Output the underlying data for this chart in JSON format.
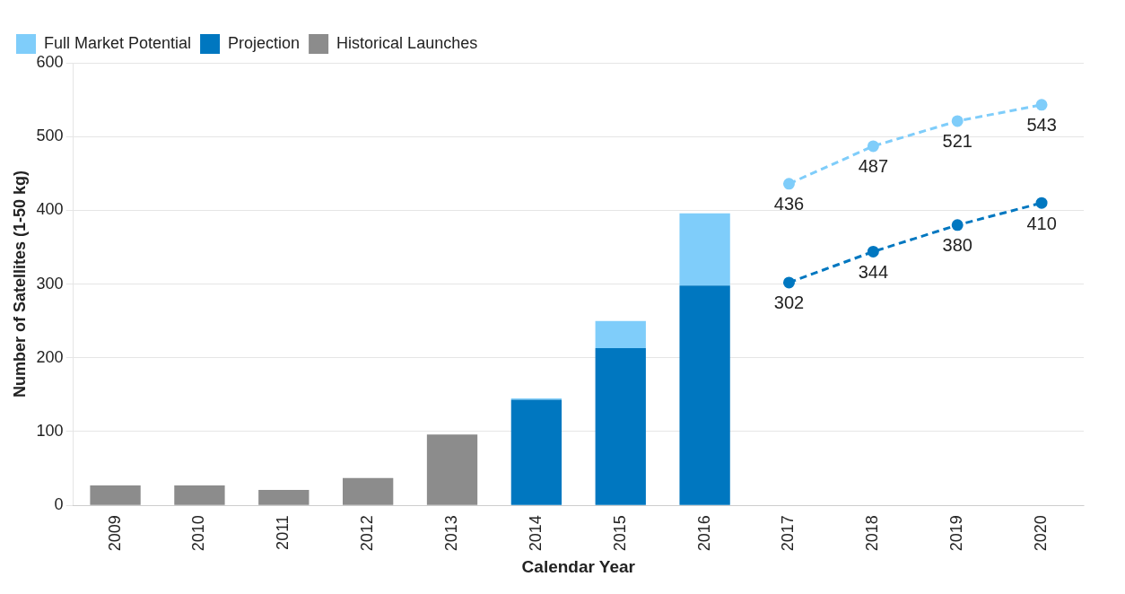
{
  "chart_data": {
    "type": "bar",
    "stacked": true,
    "xlabel": "Calendar Year",
    "ylabel": "Number of Satellites (1-50 kg)",
    "categories": [
      "2009",
      "2010",
      "2011",
      "2012",
      "2013",
      "2014",
      "2015",
      "2016",
      "2017",
      "2018",
      "2019",
      "2020"
    ],
    "series": [
      {
        "name": "Historical Launches",
        "color": "#8c8c8c",
        "values": [
          27,
          27,
          21,
          37,
          96,
          null,
          null,
          null,
          null,
          null,
          null,
          null
        ]
      },
      {
        "name": "Projection",
        "color": "#0077c0",
        "values": [
          null,
          null,
          null,
          null,
          null,
          143,
          213,
          298,
          null,
          null,
          null,
          null
        ]
      },
      {
        "name": "Full Market Potential",
        "color": "#7fcdfa",
        "values": [
          null,
          null,
          null,
          null,
          null,
          2,
          37,
          98,
          null,
          null,
          null,
          null
        ]
      },
      {
        "type": "line",
        "color": "#7fcdfa",
        "marker": "circle",
        "line_style": "dashed",
        "values": [
          null,
          null,
          null,
          null,
          null,
          null,
          null,
          null,
          436,
          487,
          521,
          543
        ],
        "value_labels": [
          null,
          null,
          null,
          null,
          null,
          null,
          null,
          null,
          "436",
          "487",
          "521",
          "543"
        ]
      },
      {
        "type": "line",
        "color": "#0077c0",
        "marker": "circle",
        "line_style": "dashed",
        "values": [
          null,
          null,
          null,
          null,
          null,
          null,
          null,
          null,
          302,
          344,
          380,
          410
        ],
        "value_labels": [
          null,
          null,
          null,
          null,
          null,
          null,
          null,
          null,
          "302",
          "344",
          "380",
          "410"
        ]
      }
    ],
    "ylim": [
      0,
      600
    ],
    "yticks": [
      0,
      100,
      200,
      300,
      400,
      500,
      600
    ],
    "grid": "y",
    "legend": "top left"
  }
}
